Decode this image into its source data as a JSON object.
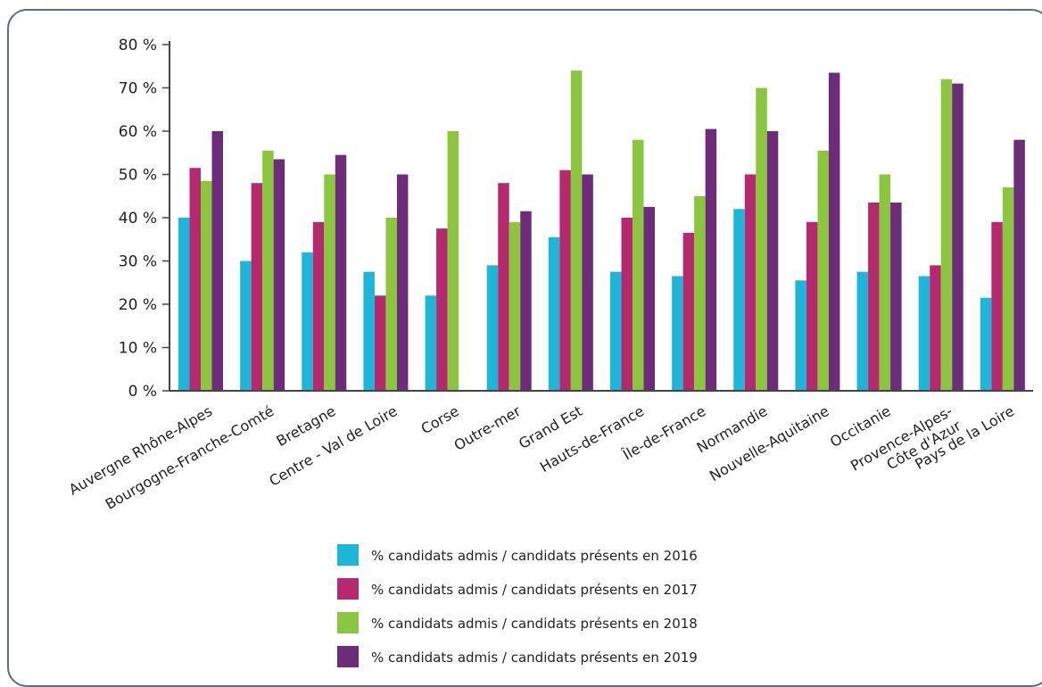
{
  "chart_data": {
    "type": "bar",
    "categories": [
      "Auvergne Rhône-Alpes",
      "Bourgogne-Franche-Comté",
      "Bretagne",
      "Centre - Val de Loire",
      "Corse",
      "Outre-mer",
      "Grand Est",
      "Hauts-de-France",
      "Île-de-France",
      "Normandie",
      "Nouvelle-Aquitaine",
      "Occitanie",
      "Provence-Alpes-\nCôte d'Azur",
      "Pays de la Loire"
    ],
    "series": [
      {
        "name": "% candidats admis / candidats présents en 2016",
        "color": "#1db5d8",
        "values": [
          40,
          30,
          32,
          27.5,
          22,
          29,
          35.5,
          27.5,
          26.5,
          42,
          25.5,
          27.5,
          26.5,
          21.5
        ]
      },
      {
        "name": "% candidats admis / candidats présents en 2017",
        "color": "#b52a6e",
        "values": [
          51.5,
          48,
          39,
          22,
          37.5,
          48,
          51,
          40,
          36.5,
          50,
          39,
          43.5,
          29,
          39
        ]
      },
      {
        "name": "% candidats admis / candidats présents en 2018",
        "color": "#8cc63f",
        "values": [
          48.5,
          55.5,
          50,
          40,
          60,
          39,
          74,
          58,
          45,
          70,
          55.5,
          50,
          72,
          47
        ]
      },
      {
        "name": "% candidats admis / candidats présents en 2019",
        "color": "#6d2c7a",
        "values": [
          60,
          53.5,
          54.5,
          50,
          null,
          41.5,
          50,
          42.5,
          60.5,
          60,
          73.5,
          43.5,
          71,
          58
        ]
      }
    ],
    "y_ticks": [
      "0 %",
      "10 %",
      "20 %",
      "30 %",
      "40 %",
      "50 %",
      "60 %",
      "70 %",
      "80 %"
    ],
    "ylim": [
      0,
      80
    ],
    "grid": false,
    "legend_position": "bottom"
  }
}
